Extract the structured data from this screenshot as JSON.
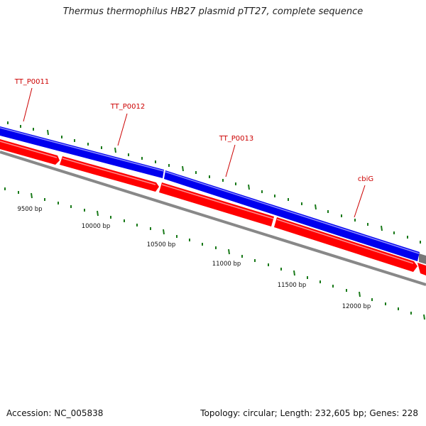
{
  "title": "Thermus thermophilus HB27 plasmid pTT27, complete sequence",
  "footer": {
    "accession": "Accession: NC_005838",
    "summary": "Topology: circular; Length: 232,605 bp; Genes: 228"
  },
  "colors": {
    "forward_track": "#0000ee",
    "reverse_track": "#ff0000",
    "backbone": "#777777",
    "ticks": "#1a7a1a",
    "gene_labels": "#cc0000",
    "text": "#111111"
  },
  "genes": [
    {
      "label": "TT_P0011"
    },
    {
      "label": "TT_P0012"
    },
    {
      "label": "TT_P0013"
    },
    {
      "label": "cbiG"
    }
  ],
  "scale_labels": [
    "9500 bp",
    "10000 bp",
    "10500 bp",
    "11000 bp",
    "11500 bp",
    "12000 bp"
  ]
}
